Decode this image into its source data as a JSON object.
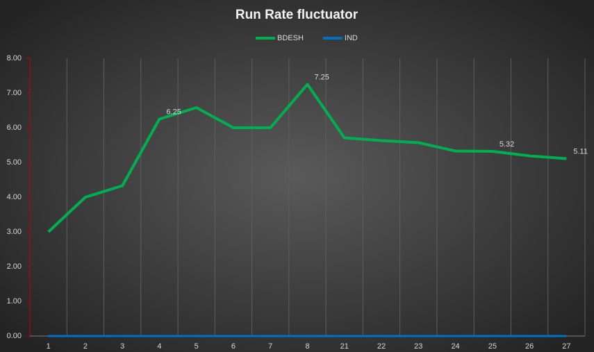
{
  "chart_data": {
    "type": "line",
    "title": "Run Rate fluctuator",
    "categories": [
      "1",
      "2",
      "3",
      "4",
      "5",
      "6",
      "7",
      "8",
      "21",
      "22",
      "23",
      "24",
      "25",
      "26",
      "27"
    ],
    "series": [
      {
        "name": "BDESH",
        "color": "#00b050",
        "values": [
          3.0,
          4.0,
          4.33,
          6.25,
          6.58,
          6.0,
          6.0,
          7.25,
          5.71,
          5.63,
          5.57,
          5.33,
          5.32,
          5.19,
          5.11
        ],
        "value_labels": [
          null,
          null,
          null,
          "6.25",
          null,
          null,
          null,
          "7.25",
          null,
          null,
          null,
          null,
          "5.32",
          null,
          "5.11"
        ]
      },
      {
        "name": "IND",
        "color": "#0070c0",
        "values": [
          0,
          0,
          0,
          0,
          0,
          0,
          0,
          0,
          0,
          0,
          0,
          0,
          0,
          0,
          0
        ]
      }
    ],
    "ylim": [
      0,
      8
    ],
    "yticks": [
      {
        "value": 0,
        "label": "0.00"
      },
      {
        "value": 1,
        "label": "1.00"
      },
      {
        "value": 2,
        "label": "2.00"
      },
      {
        "value": 3,
        "label": "3.00"
      },
      {
        "value": 4,
        "label": "4.00"
      },
      {
        "value": 5,
        "label": "5.00"
      },
      {
        "value": 6,
        "label": "6.00"
      },
      {
        "value": 7,
        "label": "7.00"
      },
      {
        "value": 8,
        "label": "8.00"
      }
    ],
    "grid": "vertical",
    "legend": "top"
  }
}
